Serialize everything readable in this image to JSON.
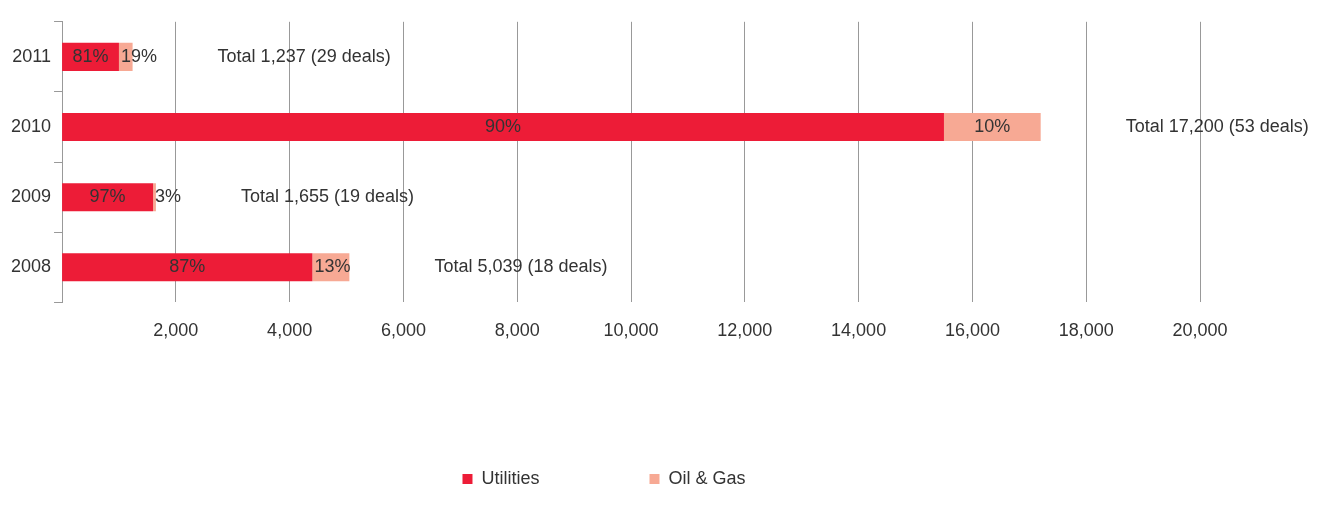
{
  "chart_data": {
    "type": "bar",
    "orientation": "horizontal",
    "stacked": true,
    "categories": [
      "2011",
      "2010",
      "2009",
      "2008"
    ],
    "series": [
      {
        "name": "Utilities",
        "color": "#ed1c37",
        "values": [
          1000,
          15500,
          1600,
          4400
        ]
      },
      {
        "name": "Oil & Gas",
        "color": "#f7a994",
        "values": [
          240,
          1700,
          50,
          650
        ]
      }
    ],
    "xlim": [
      0,
      20000
    ],
    "xticks": [
      {
        "value": 2000,
        "label": "2,000"
      },
      {
        "value": 4000,
        "label": "4,000"
      },
      {
        "value": 6000,
        "label": "6,000"
      },
      {
        "value": 8000,
        "label": "8,000"
      },
      {
        "value": 10000,
        "label": "10,000"
      },
      {
        "value": 12000,
        "label": "12,000"
      },
      {
        "value": 14000,
        "label": "14,000"
      },
      {
        "value": 16000,
        "label": "16,000"
      },
      {
        "value": 18000,
        "label": "18,000"
      },
      {
        "value": 20000,
        "label": "20,000"
      }
    ],
    "annotations": [
      "81%",
      "19%",
      "Total 1,237 (29 deals)",
      "90%",
      "10%",
      "Total 17,200 (53 deals)",
      "97%",
      "3%",
      "Total 1,655 (19 deals)",
      "87%",
      "13%",
      "Total 5,039 (18 deals)"
    ],
    "grid": "x",
    "legend": "bottom"
  }
}
